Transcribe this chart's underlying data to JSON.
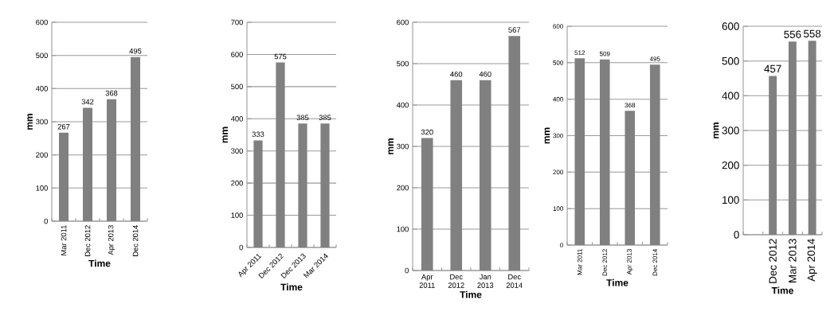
{
  "chart_data": [
    {
      "type": "bar",
      "ylabel": "mm",
      "xlabel": "Time",
      "categories": [
        "Mar 2011",
        "Dec 2012",
        "Apr 2013",
        "Dec 2014"
      ],
      "values": [
        267,
        342,
        368,
        495
      ],
      "color": "#808080",
      "ylim": [
        0,
        600
      ],
      "yticks": [
        0,
        100,
        200,
        300,
        400,
        500,
        600
      ],
      "grid": "y",
      "data_labels": true
    },
    {
      "type": "bar",
      "ylabel": "mm",
      "xlabel": "Time",
      "categories": [
        "Apr 2011",
        "Dec 2012",
        "Dec 2013",
        "Mar 2014"
      ],
      "values": [
        333,
        575,
        385,
        385
      ],
      "color": "#808080",
      "ylim": [
        0,
        700
      ],
      "yticks": [
        0,
        100,
        200,
        300,
        400,
        500,
        600,
        700
      ],
      "grid": "y",
      "data_labels": true
    },
    {
      "type": "bar",
      "ylabel": "mm",
      "xlabel": "Time",
      "categories": [
        "Apr 2011",
        "Dec 2012",
        "Jan 2013",
        "Dec 2014"
      ],
      "values": [
        320,
        460,
        460,
        567
      ],
      "color": "#808080",
      "ylim": [
        0,
        600
      ],
      "yticks": [
        0,
        100,
        200,
        300,
        400,
        500,
        600
      ],
      "grid": "y",
      "data_labels": true
    },
    {
      "type": "bar",
      "ylabel": "mm",
      "xlabel": "Time",
      "categories": [
        "Mar 2011",
        "Dec 2012",
        "Apr 2013",
        "Dec 2014"
      ],
      "values": [
        512,
        509,
        368,
        495
      ],
      "color": "#808080",
      "ylim": [
        0,
        600
      ],
      "yticks": [
        0,
        100,
        200,
        300,
        400,
        500,
        600
      ],
      "grid": "y",
      "data_labels": true
    },
    {
      "type": "bar",
      "ylabel": "mm",
      "xlabel": "Time",
      "categories": [
        null,
        "Dec 2012",
        "Mar 2013",
        "Apr 2014"
      ],
      "values": [
        null,
        457,
        556,
        558
      ],
      "color": "#808080",
      "ylim": [
        0,
        600
      ],
      "yticks": [
        0,
        100,
        200,
        300,
        400,
        500,
        600
      ],
      "grid": "y",
      "data_labels": true
    }
  ]
}
